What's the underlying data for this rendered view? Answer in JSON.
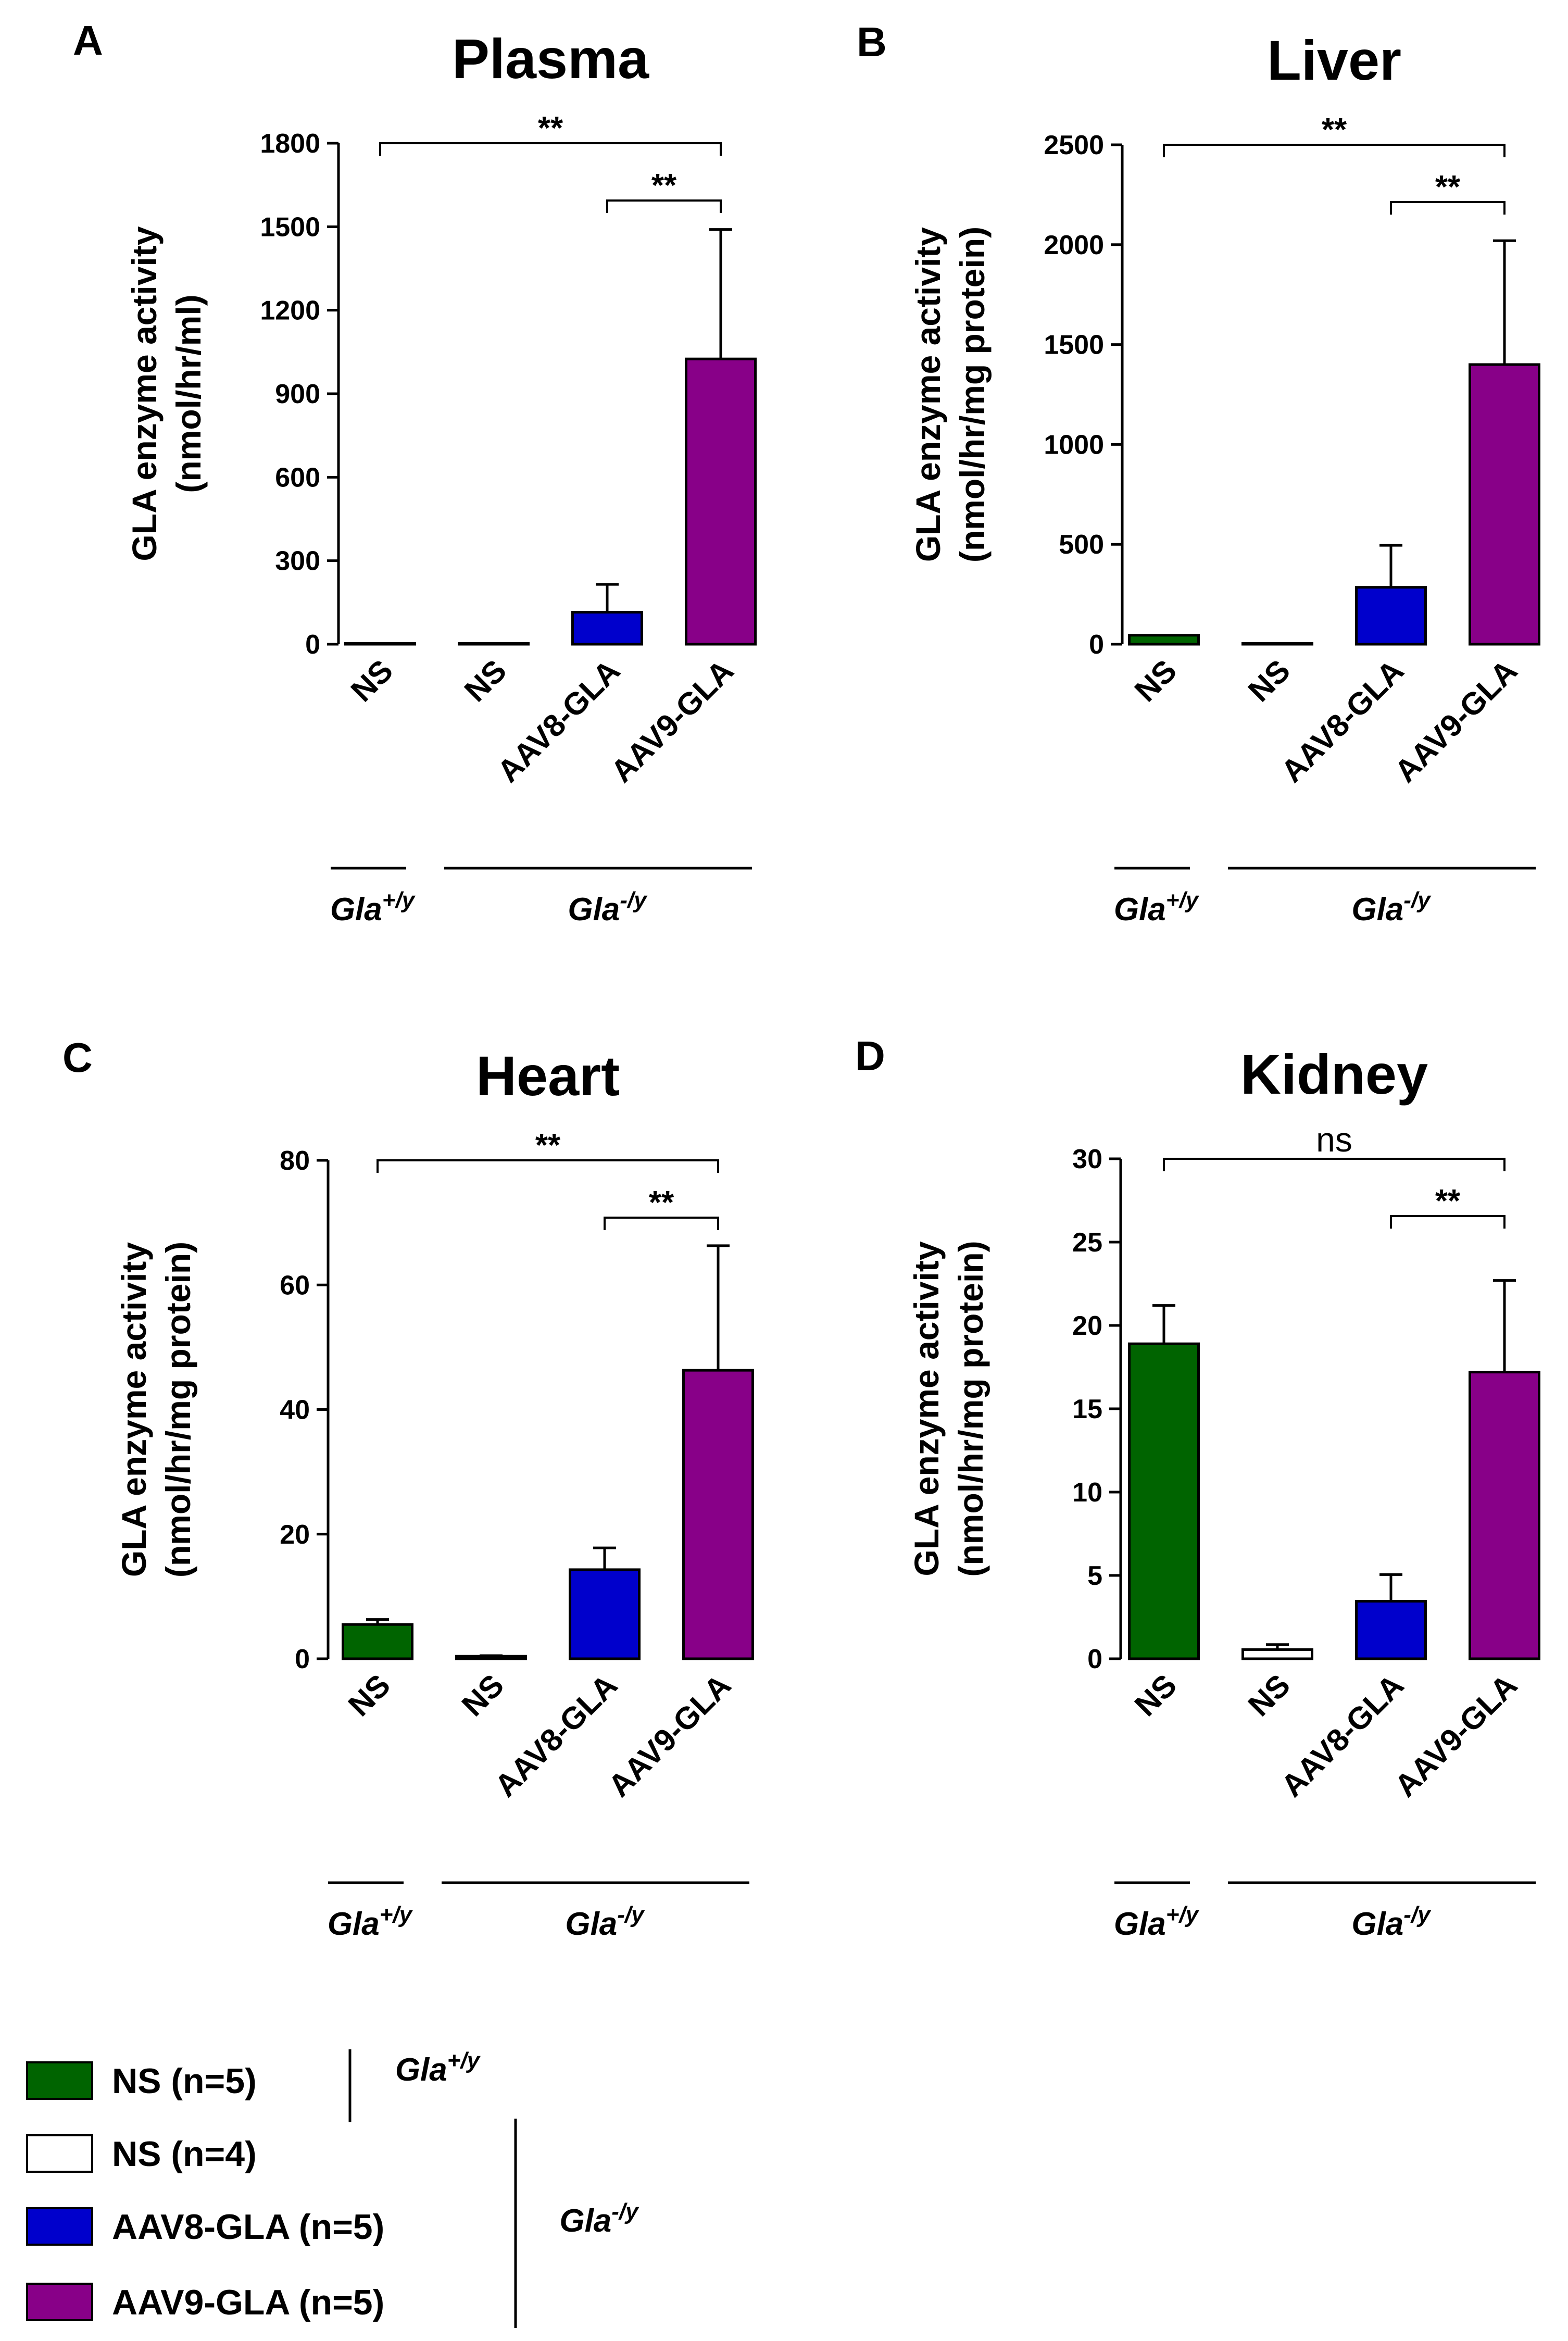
{
  "colors": {
    "ns_wt": "#006400",
    "ns_ko": "#ffffff",
    "aav8": "#0000cc",
    "aav9": "#880088",
    "stroke": "#000000"
  },
  "genotype": {
    "wt": {
      "base": "Gla",
      "sup": "+/y"
    },
    "ko": {
      "base": "Gla",
      "sup": "-/y"
    }
  },
  "chart_data": [
    {
      "type": "bar",
      "panel": "A",
      "title": "Plasma",
      "ylabel_line1": "GLA enzyme activity",
      "ylabel_line2": "(nmol/hr/ml)",
      "categories": [
        "NS",
        "NS",
        "AAV8-GLA",
        "AAV9-GLA"
      ],
      "values": [
        0,
        0,
        115,
        1025
      ],
      "errors": [
        0,
        0,
        100,
        465
      ],
      "ylim": [
        0,
        1800
      ],
      "yticks": [
        0,
        300,
        600,
        900,
        1200,
        1500,
        1800
      ],
      "significance": [
        {
          "from": 0,
          "to": 3,
          "label": "**"
        },
        {
          "from": 2,
          "to": 3,
          "label": "**"
        }
      ]
    },
    {
      "type": "bar",
      "panel": "B",
      "title": "Liver",
      "ylabel_line1": "GLA enzyme activity",
      "ylabel_line2": "(nmol/hr/mg protein)",
      "categories": [
        "NS",
        "NS",
        "AAV8-GLA",
        "AAV9-GLA"
      ],
      "values": [
        45,
        0,
        285,
        1400
      ],
      "errors": [
        0,
        0,
        210,
        620
      ],
      "ylim": [
        0,
        2500
      ],
      "yticks": [
        0,
        500,
        1000,
        1500,
        2000,
        2500
      ],
      "significance": [
        {
          "from": 0,
          "to": 3,
          "label": "**"
        },
        {
          "from": 2,
          "to": 3,
          "label": "**"
        }
      ]
    },
    {
      "type": "bar",
      "panel": "C",
      "title": "Heart",
      "ylabel_line1": "GLA enzyme activity",
      "ylabel_line2": "(nmol/hr/mg protein)",
      "categories": [
        "NS",
        "NS",
        "AAV8-GLA",
        "AAV9-GLA"
      ],
      "values": [
        5.5,
        0.4,
        14.3,
        46.3
      ],
      "errors": [
        0.8,
        0.1,
        3.5,
        20
      ],
      "ylim": [
        0,
        80
      ],
      "yticks": [
        0,
        20,
        40,
        60,
        80
      ],
      "significance": [
        {
          "from": 0,
          "to": 3,
          "label": "**"
        },
        {
          "from": 2,
          "to": 3,
          "label": "**"
        }
      ]
    },
    {
      "type": "bar",
      "panel": "D",
      "title": "Kidney",
      "ylabel_line1": "GLA enzyme activity",
      "ylabel_line2": "(nmol/hr/mg protein)",
      "categories": [
        "NS",
        "NS",
        "AAV8-GLA",
        "AAV9-GLA"
      ],
      "values": [
        18.9,
        0.55,
        3.45,
        17.2
      ],
      "errors": [
        2.3,
        0.3,
        1.6,
        5.5
      ],
      "ylim": [
        0,
        30
      ],
      "yticks": [
        0,
        5,
        10,
        15,
        20,
        25,
        30
      ],
      "significance": [
        {
          "from": 0,
          "to": 3,
          "label": "ns"
        },
        {
          "from": 2,
          "to": 3,
          "label": "**"
        }
      ]
    }
  ],
  "legend": {
    "items": [
      {
        "label": "NS (n=5)",
        "color": "#006400"
      },
      {
        "label": "NS (n=4)",
        "color": "#ffffff"
      },
      {
        "label": "AAV8-GLA (n=5)",
        "color": "#0000cc"
      },
      {
        "label": "AAV9-GLA (n=5)",
        "color": "#880088"
      }
    ]
  }
}
